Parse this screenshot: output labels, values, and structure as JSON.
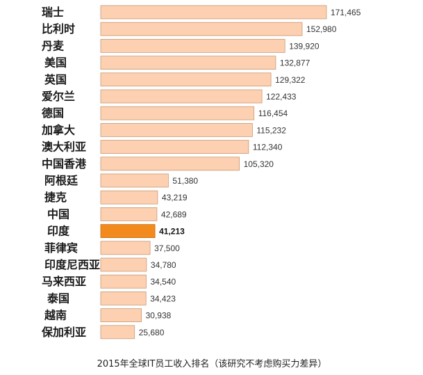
{
  "chart_data": {
    "type": "bar",
    "orientation": "horizontal",
    "title": "",
    "caption": "2015年全球IT员工收入排名（该研究不考虑购买力差异）",
    "categories": [
      "瑞士",
      "比利时",
      "丹麦",
      "美国",
      "英国",
      "爱尔兰",
      "德国",
      "加拿大",
      "澳大利亚",
      "中国香港",
      "阿根廷",
      "捷克",
      "中国",
      "印度",
      "菲律宾",
      "印度尼西亚",
      "马来西亚",
      "泰国",
      "越南",
      "保加利亚"
    ],
    "values": [
      171465,
      152980,
      139920,
      132877,
      129322,
      122433,
      116454,
      115232,
      112340,
      105320,
      51380,
      43219,
      42689,
      41213,
      37500,
      34780,
      34540,
      34423,
      30938,
      25680
    ],
    "labels": [
      "171,465",
      "152,980",
      "139,920",
      "132,877",
      "129,322",
      "122,433",
      "116,454",
      "115,232",
      "112,340",
      "105,320",
      "51,380",
      "43,219",
      "42,689",
      "41,213",
      "37,500",
      "34,780",
      "34,540",
      "34,423",
      "30,938",
      "25,680"
    ],
    "highlight_index": 13,
    "xlim": [
      0,
      171465
    ],
    "grid": false,
    "legend": "none",
    "colors": {
      "bar_fill": "#fcd0b0",
      "bar_stroke": "#c89a76",
      "highlight_fill": "#f28a1e",
      "highlight_stroke": "#c86a10"
    }
  }
}
